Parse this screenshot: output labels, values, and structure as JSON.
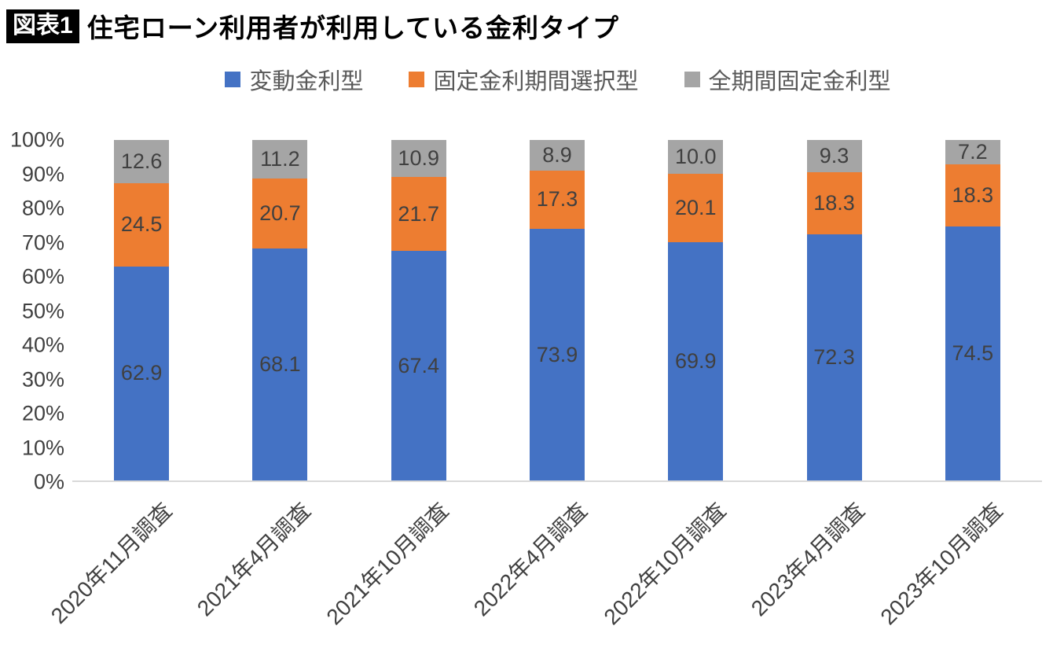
{
  "header": {
    "badge": "図表1",
    "title": "住宅ローン利用者が利用している金利タイプ"
  },
  "chart_data": {
    "type": "bar",
    "stacked": true,
    "stacked_100_percent": true,
    "title": "住宅ローン利用者が利用している金利タイプ",
    "categories": [
      "2020年11月調査",
      "2021年4月調査",
      "2021年10月調査",
      "2022年4月調査",
      "2022年10月調査",
      "2023年4月調査",
      "2023年10月調査"
    ],
    "series": [
      {
        "name": "変動金利型",
        "color": "#4472C4",
        "values": [
          62.9,
          68.1,
          67.4,
          73.9,
          69.9,
          72.3,
          74.5
        ]
      },
      {
        "name": "固定金利期間選択型",
        "color": "#ED7D31",
        "values": [
          24.5,
          20.7,
          21.7,
          17.3,
          20.1,
          18.3,
          18.3
        ]
      },
      {
        "name": "全期間固定金利型",
        "color": "#A5A5A5",
        "values": [
          12.6,
          11.2,
          10.9,
          8.9,
          10.0,
          9.3,
          7.2
        ]
      }
    ],
    "y_ticks": [
      "100%",
      "90%",
      "80%",
      "70%",
      "60%",
      "50%",
      "40%",
      "30%",
      "20%",
      "10%",
      "0%"
    ],
    "ylim": [
      0,
      100
    ],
    "xlabel": "",
    "ylabel": "",
    "grid": false,
    "legend_position": "top"
  }
}
